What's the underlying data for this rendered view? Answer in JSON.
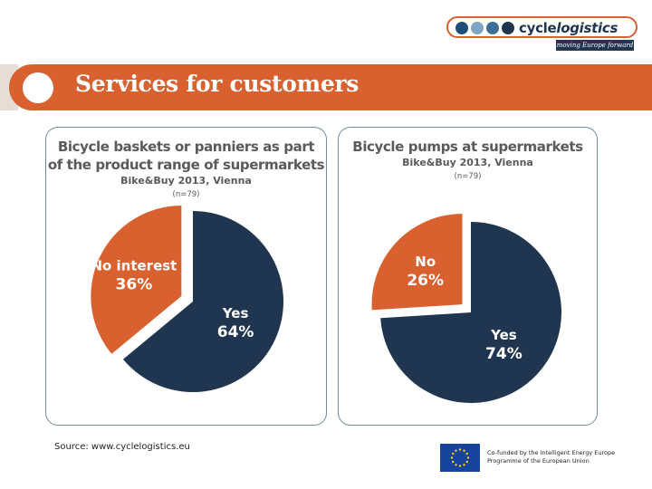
{
  "logo": {
    "word_plain": "cycle",
    "word_italic": "logistics",
    "tagline": "moving Europe forward",
    "dot_colors": [
      "#1f4e79",
      "#7fa7c4",
      "#3b6e99",
      "#1f3550"
    ]
  },
  "header": {
    "title": "Services for customers"
  },
  "colors": {
    "accent": "#d9602f",
    "navy": "#1f3550",
    "slice_orange": "#d9602f"
  },
  "chart_data": [
    {
      "type": "pie",
      "title_line1": "Bicycle baskets or panniers as part",
      "title_line2": "of the product range of supermarkets",
      "subtitle": "Bike&Buy 2013, Vienna",
      "note": "(n=79)",
      "slices": [
        {
          "label": "Yes",
          "value": 64,
          "value_label": "64%"
        },
        {
          "label": "No interest",
          "value": 36,
          "value_label": "36%"
        }
      ]
    },
    {
      "type": "pie",
      "title_line1": "Bicycle pumps at supermarkets",
      "subtitle": "Bike&Buy 2013, Vienna",
      "note": "(n=79)",
      "slices": [
        {
          "label": "Yes",
          "value": 74,
          "value_label": "74%"
        },
        {
          "label": "No",
          "value": 26,
          "value_label": "26%"
        }
      ]
    }
  ],
  "footer": {
    "source": "Source: www.cyclelogistics.eu",
    "eu_line1": "Co-funded by the Intelligent Energy Europe",
    "eu_line2": "Programme of the European Union"
  }
}
